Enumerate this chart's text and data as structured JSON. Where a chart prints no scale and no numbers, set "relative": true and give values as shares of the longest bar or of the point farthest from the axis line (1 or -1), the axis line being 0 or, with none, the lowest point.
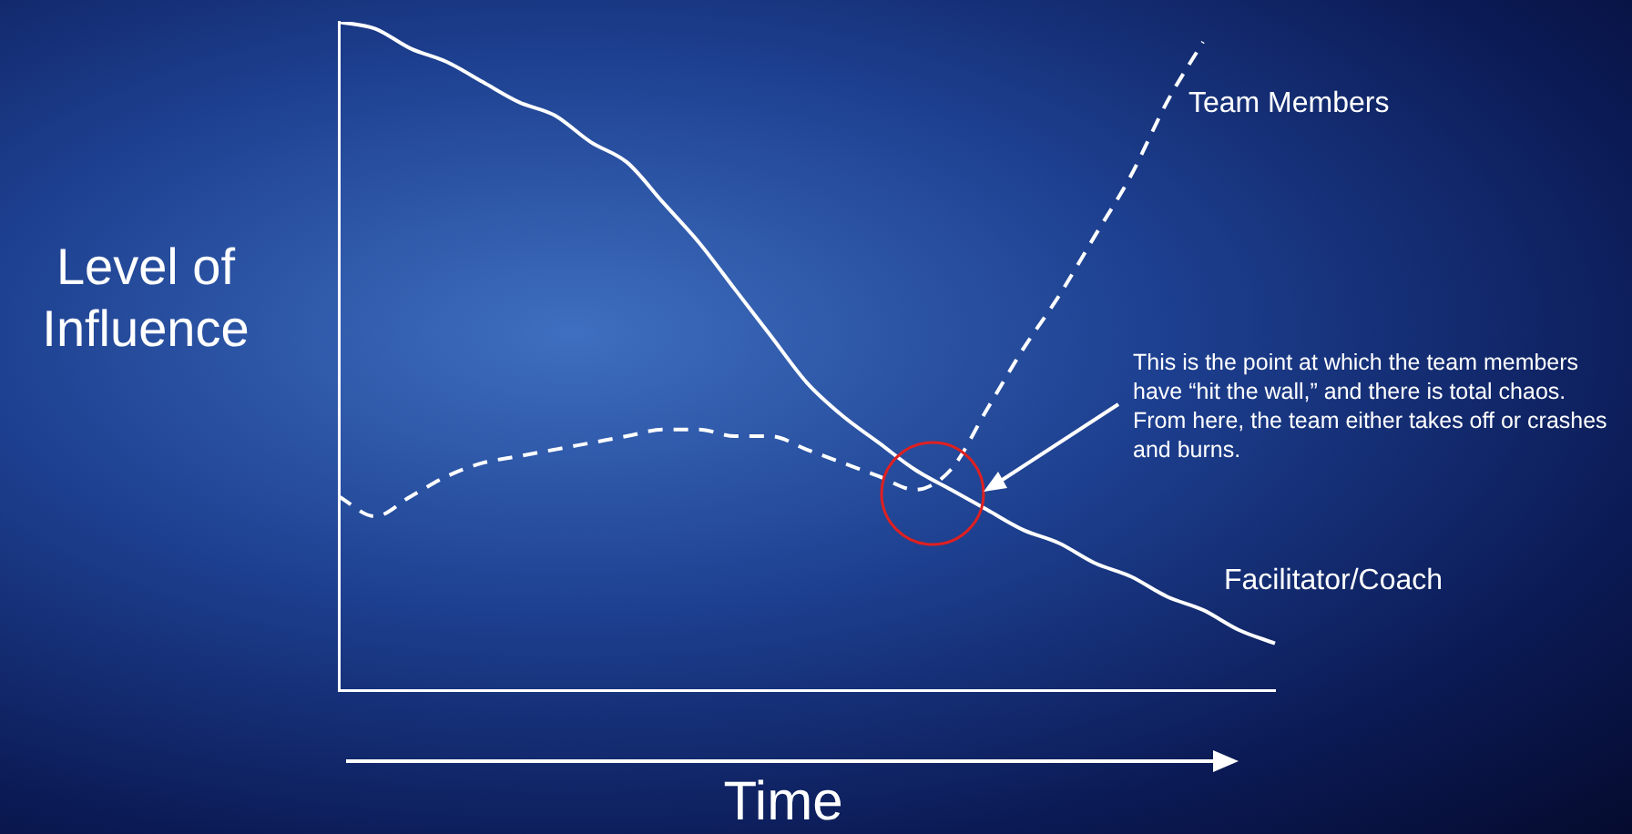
{
  "chart_data": {
    "type": "line",
    "relative": true,
    "xlabel": "Time",
    "ylabel": "Level of Influence",
    "legend": false,
    "categories": [
      null,
      null,
      null,
      null,
      null,
      null,
      null,
      null,
      null,
      null,
      null,
      null,
      null,
      null,
      null,
      null,
      null,
      null,
      null,
      null,
      null,
      null,
      null,
      null,
      null,
      null,
      null
    ],
    "series": [
      {
        "name": "Facilitator/Coach",
        "color": "#ffffff",
        "line_style": "solid",
        "values": [
          1.0,
          0.99,
          0.96,
          0.94,
          0.91,
          0.88,
          0.86,
          0.82,
          0.79,
          0.73,
          0.67,
          0.6,
          0.53,
          0.46,
          0.41,
          0.37,
          0.33,
          0.3,
          0.27,
          0.24,
          0.22,
          0.19,
          0.17,
          0.14,
          0.12,
          0.09,
          0.07
        ]
      },
      {
        "name": "Team Members",
        "color": "#ffffff",
        "line_style": "dashed",
        "values": [
          0.29,
          0.26,
          0.29,
          0.32,
          0.34,
          0.35,
          0.36,
          0.37,
          0.38,
          0.39,
          0.39,
          0.38,
          0.38,
          0.36,
          0.34,
          0.32,
          0.3,
          0.33,
          0.42,
          0.51,
          0.59,
          0.68,
          0.77,
          0.88,
          0.97,
          null,
          null
        ]
      }
    ],
    "annotations": [
      "This is the point at which the team members have “hit the wall,” and there is total chaos.   From here, the team either takes off or crashes and burns."
    ],
    "marker": "none"
  }
}
